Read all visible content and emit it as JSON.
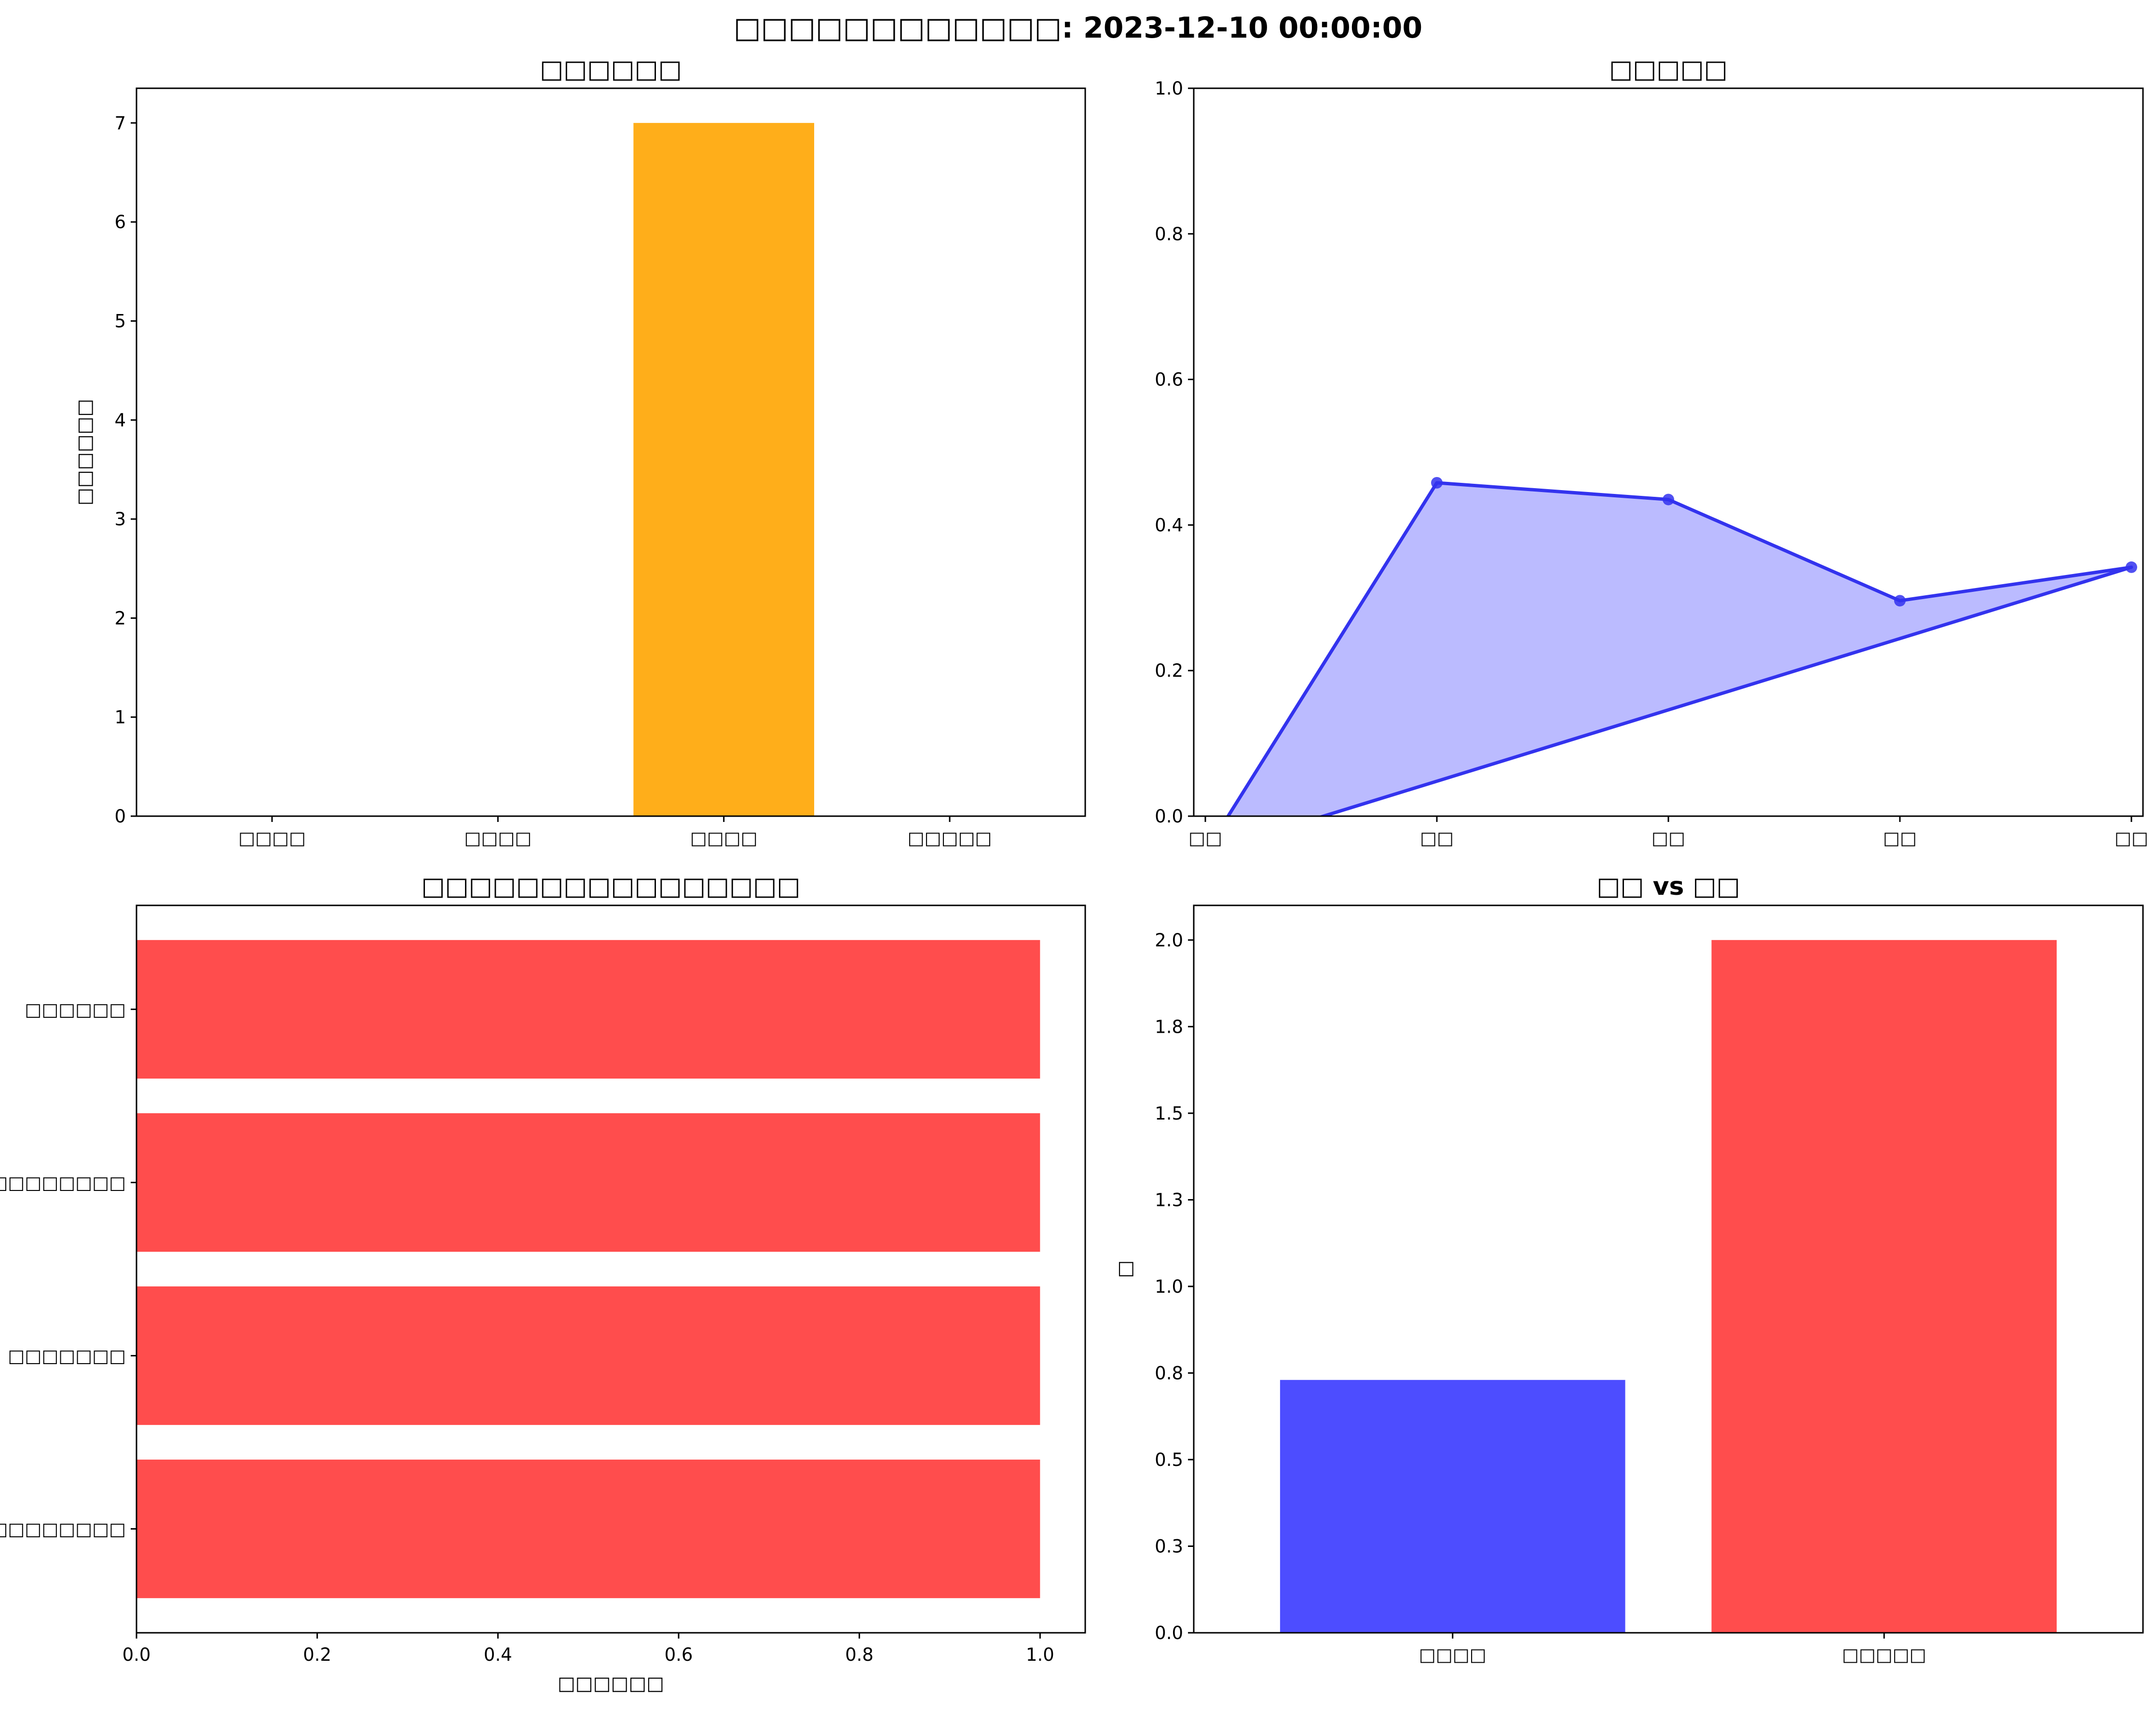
{
  "figure": {
    "suptitle": "□□□□□□□□□□□□: 2023-12-10 00:00:00"
  },
  "chart_data": [
    {
      "type": "bar",
      "title": "□□□□□□",
      "xlabel": "",
      "ylabel": "□□□□□□",
      "categories": [
        "□□□□",
        "□□□□",
        "□□□□",
        "□□□□□"
      ],
      "values": [
        0,
        0,
        7,
        0
      ],
      "ylim": [
        0,
        7.35
      ],
      "yticks": [
        0,
        1,
        2,
        3,
        4,
        5,
        6,
        7
      ],
      "bar_color": "#ffae1a",
      "grid": false
    },
    {
      "type": "area",
      "title": "□□□□□",
      "xlabel": "",
      "ylabel": "",
      "categories": [
        "□□",
        "□□",
        "□□",
        "□□",
        "□□"
      ],
      "values": [
        -0.05,
        0.458,
        0.435,
        0.296,
        0.342
      ],
      "ylim": [
        0,
        1.0
      ],
      "yticks": [
        0.0,
        0.2,
        0.4,
        0.6,
        0.8,
        1.0
      ],
      "line_color": "#3333ee",
      "fill_color": "#bbbbff",
      "grid": false
    },
    {
      "type": "bar",
      "orientation": "horizontal",
      "title": "□□□□□□□□□□□□□□□□",
      "xlabel": "□□□□□□",
      "ylabel": "",
      "categories": [
        "□□□□□□",
        "□□□□□□□□",
        "□□□□□□□",
        "□□□□□□□□□"
      ],
      "values": [
        1.0,
        1.0,
        1.0,
        1.0
      ],
      "xlim": [
        0,
        1.05
      ],
      "xticks": [
        0.0,
        0.2,
        0.4,
        0.6,
        0.8,
        1.0
      ],
      "bar_color": "#ff4d4d",
      "grid": false
    },
    {
      "type": "bar",
      "title": "□□ vs □□",
      "xlabel": "",
      "ylabel": "□",
      "categories": [
        "□□□□",
        "□□□□□"
      ],
      "values": [
        0.73,
        2.0
      ],
      "colors": [
        "#4d4dff",
        "#ff4d4d"
      ],
      "ylim": [
        0,
        2.1
      ],
      "yticks": [
        0.0,
        0.25,
        0.5,
        0.75,
        1.0,
        1.25,
        1.5,
        1.75,
        2.0
      ],
      "grid": false
    }
  ]
}
